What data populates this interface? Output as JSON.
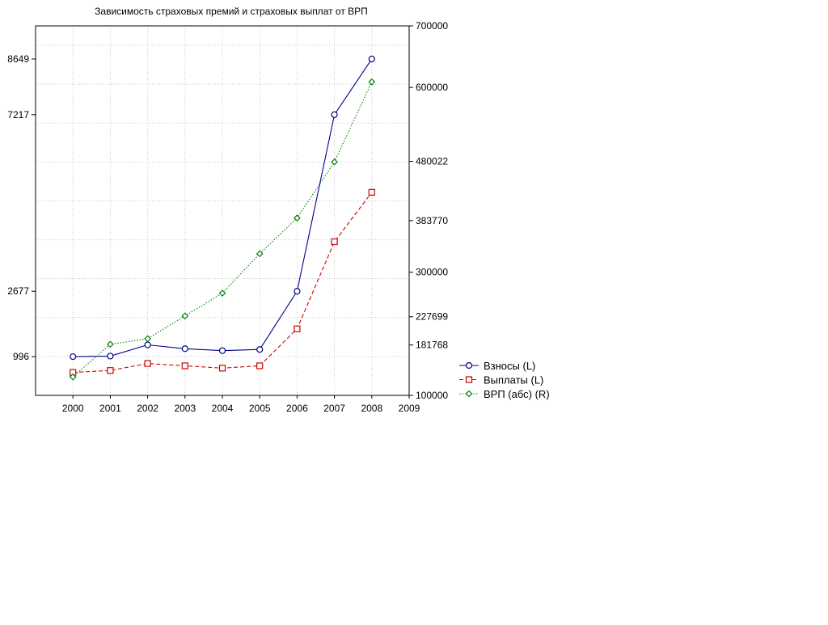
{
  "chart_data": {
    "type": "line",
    "title": "Зависимость страховых премий и страховых выплат от ВРП",
    "x": [
      2000,
      2001,
      2002,
      2003,
      2004,
      2005,
      2006,
      2007,
      2008
    ],
    "xlim": [
      1999,
      2009
    ],
    "x_ticks": [
      "2000",
      "2001",
      "2002",
      "2003",
      "2004",
      "2005",
      "2006",
      "2007",
      "2008",
      "2009"
    ],
    "y_left": {
      "lim": [
        0,
        9500
      ],
      "tick_labels": [
        {
          "value": 996,
          "label": "996"
        },
        {
          "value": 2677,
          "label": "2677"
        },
        {
          "value": 7217,
          "label": "7217"
        },
        {
          "value": 8649,
          "label": "8649"
        }
      ],
      "grid_values": [
        1000,
        2000,
        3000,
        4000,
        5000,
        6000,
        7000,
        8000,
        9000
      ]
    },
    "y_right": {
      "lim": [
        100000,
        700000
      ],
      "tick_labels": [
        {
          "value": 100000,
          "label": "100000"
        },
        {
          "value": 181768,
          "label": "181768"
        },
        {
          "value": 227699,
          "label": "227699"
        },
        {
          "value": 300000,
          "label": "300000"
        },
        {
          "value": 383770,
          "label": "383770"
        },
        {
          "value": 480022,
          "label": "480022"
        },
        {
          "value": 600000,
          "label": "600000"
        },
        {
          "value": 700000,
          "label": "700000"
        }
      ]
    },
    "grid": true,
    "legend_position": "right-bottom",
    "series": [
      {
        "name": "Взносы (L)",
        "axis": "left",
        "color": "#00008b",
        "marker": "circle",
        "line": "solid",
        "values": [
          996,
          1010,
          1300,
          1200,
          1150,
          1180,
          2677,
          7217,
          8649
        ]
      },
      {
        "name": "Выплаты (L)",
        "axis": "left",
        "color": "#cc0000",
        "marker": "square",
        "line": "dashed",
        "values": [
          590,
          640,
          820,
          760,
          700,
          760,
          1710,
          3950,
          5220
        ]
      },
      {
        "name": "ВРП (абс) (R)",
        "axis": "right",
        "color": "#008000",
        "marker": "diamond",
        "line": "dotted",
        "values": [
          130000,
          183000,
          192000,
          229000,
          266000,
          330000,
          388000,
          479000,
          609000
        ]
      }
    ]
  }
}
